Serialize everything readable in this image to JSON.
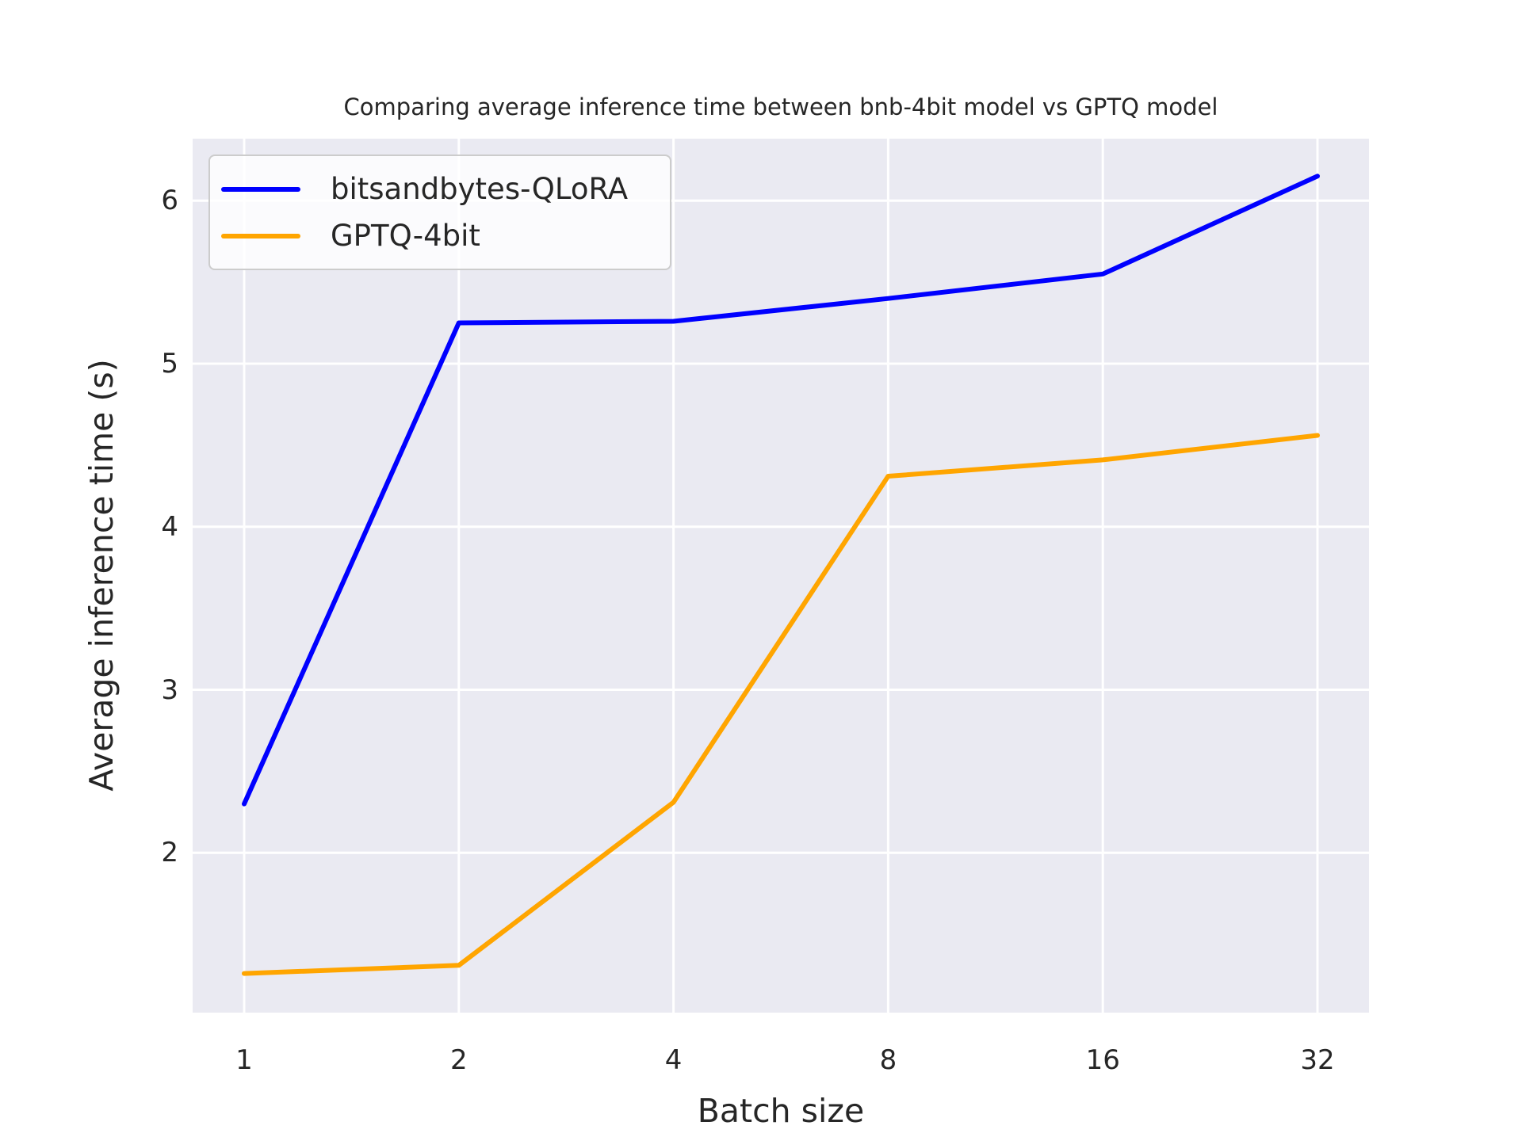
{
  "chart_data": {
    "type": "line",
    "title": "Comparing average inference time between bnb-4bit model vs GPTQ model",
    "xlabel": "Batch size",
    "ylabel": "Average inference time (s)",
    "categories": [
      "1",
      "2",
      "4",
      "8",
      "16",
      "32"
    ],
    "yticks": [
      "2",
      "3",
      "4",
      "5",
      "6"
    ],
    "ylim": [
      1.02,
      6.38
    ],
    "x_index_lim": [
      -0.24,
      5.24
    ],
    "grid": true,
    "gridline_color": "#ffffff",
    "plot_background": "#eaeaf2",
    "text_color": "#262626",
    "legend_position": "upper left",
    "series": [
      {
        "name": "bitsandbytes-QLoRA",
        "color": "#0000ff",
        "values": [
          2.3,
          5.25,
          5.26,
          5.4,
          5.55,
          6.15
        ]
      },
      {
        "name": "GPTQ-4bit",
        "color": "#ffa500",
        "values": [
          1.26,
          1.31,
          2.31,
          4.31,
          4.41,
          4.56
        ]
      }
    ]
  }
}
